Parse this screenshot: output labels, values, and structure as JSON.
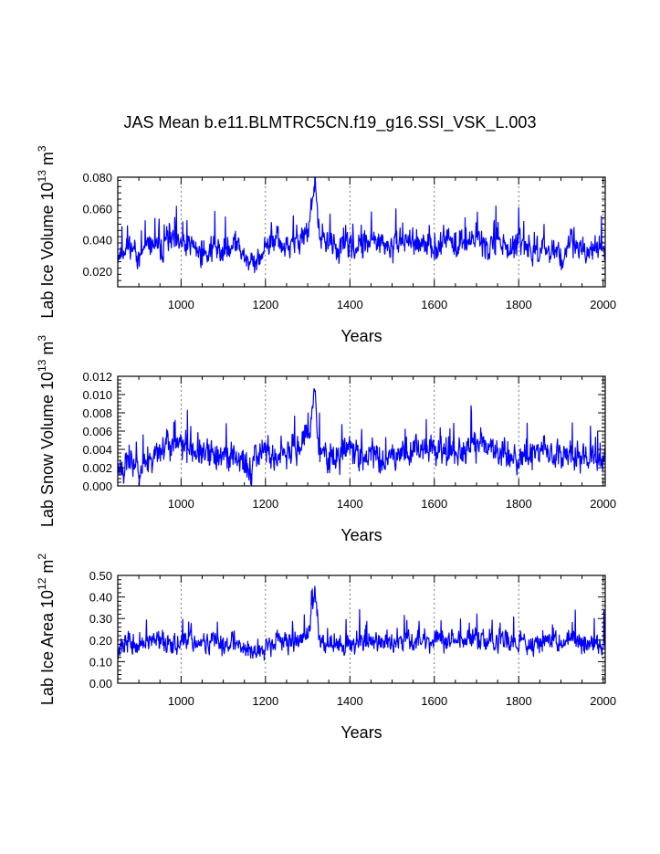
{
  "title": "JAS Mean b.e11.BLMTRC5CN.f19_g16.SSI_VSK_L.003",
  "colors": {
    "series": "#0000ff",
    "axis": "#000000",
    "grid": "#555555"
  },
  "chart_data": [
    {
      "type": "line",
      "title": "",
      "xlabel": "Years",
      "ylabel_parts": {
        "text": "Lab Ice Volume 10",
        "exp": "13",
        "unit": " m",
        "unit_exp": "3"
      },
      "xlim": [
        850,
        2005
      ],
      "ylim": [
        0.01,
        0.08
      ],
      "x_ticks": [
        1000,
        1200,
        1400,
        1600,
        1800,
        2000
      ],
      "y_ticks": [
        "0.020",
        "0.040",
        "0.060",
        "0.080"
      ],
      "grid": "vertical dashed at major x ticks",
      "series": [
        {
          "x": [
            850,
            875,
            900,
            925,
            950,
            975,
            1000,
            1025,
            1050,
            1075,
            1100,
            1125,
            1150,
            1175,
            1200,
            1225,
            1250,
            1275,
            1300,
            1318,
            1325,
            1350,
            1375,
            1400,
            1425,
            1450,
            1475,
            1500,
            1525,
            1550,
            1575,
            1600,
            1625,
            1650,
            1675,
            1700,
            1725,
            1750,
            1775,
            1800,
            1825,
            1850,
            1875,
            1900,
            1925,
            1950,
            1975,
            2000,
            2005
          ],
          "y": [
            0.03,
            0.036,
            0.028,
            0.038,
            0.034,
            0.04,
            0.035,
            0.038,
            0.03,
            0.036,
            0.032,
            0.038,
            0.03,
            0.022,
            0.036,
            0.04,
            0.034,
            0.04,
            0.042,
            0.078,
            0.044,
            0.038,
            0.034,
            0.036,
            0.034,
            0.04,
            0.036,
            0.034,
            0.04,
            0.038,
            0.036,
            0.034,
            0.04,
            0.036,
            0.038,
            0.042,
            0.036,
            0.04,
            0.034,
            0.036,
            0.032,
            0.034,
            0.036,
            0.03,
            0.036,
            0.034,
            0.032,
            0.036,
            0.034
          ],
          "noise": 0.012,
          "seed": 11
        }
      ]
    },
    {
      "type": "line",
      "title": "",
      "xlabel": "Years",
      "ylabel_parts": {
        "text": "Lab Snow Volume 10",
        "exp": "13",
        "unit": " m",
        "unit_exp": "3"
      },
      "xlim": [
        850,
        2005
      ],
      "ylim": [
        0.0,
        0.012
      ],
      "x_ticks": [
        1000,
        1200,
        1400,
        1600,
        1800,
        2000
      ],
      "y_ticks": [
        "0.000",
        "0.002",
        "0.004",
        "0.006",
        "0.008",
        "0.010",
        "0.012"
      ],
      "grid": "vertical dashed at major x ticks",
      "series": [
        {
          "x": [
            850,
            875,
            900,
            925,
            950,
            975,
            1000,
            1025,
            1050,
            1075,
            1100,
            1125,
            1150,
            1167,
            1175,
            1200,
            1225,
            1250,
            1275,
            1300,
            1318,
            1325,
            1350,
            1375,
            1400,
            1425,
            1450,
            1475,
            1500,
            1525,
            1550,
            1575,
            1600,
            1625,
            1650,
            1675,
            1700,
            1725,
            1750,
            1775,
            1800,
            1825,
            1850,
            1875,
            1900,
            1925,
            1950,
            1975,
            2000,
            2005
          ],
          "y": [
            0.002,
            0.0025,
            0.002,
            0.003,
            0.004,
            0.0045,
            0.0045,
            0.004,
            0.0035,
            0.003,
            0.0035,
            0.003,
            0.0025,
            0.0005,
            0.0035,
            0.004,
            0.003,
            0.0035,
            0.004,
            0.005,
            0.0114,
            0.004,
            0.003,
            0.0035,
            0.0045,
            0.003,
            0.0035,
            0.003,
            0.0035,
            0.0035,
            0.004,
            0.0045,
            0.004,
            0.0035,
            0.0035,
            0.004,
            0.0045,
            0.004,
            0.004,
            0.0035,
            0.003,
            0.0035,
            0.004,
            0.0035,
            0.003,
            0.0035,
            0.003,
            0.003,
            0.003,
            0.003
          ],
          "noise": 0.0024,
          "seed": 23
        }
      ]
    },
    {
      "type": "line",
      "title": "",
      "xlabel": "Years",
      "ylabel_parts": {
        "text": "Lab Ice Area 10",
        "exp": "12",
        "unit": " m",
        "unit_exp": "2"
      },
      "xlim": [
        850,
        2005
      ],
      "ylim": [
        0.0,
        0.5
      ],
      "x_ticks": [
        1000,
        1200,
        1400,
        1600,
        1800,
        2000
      ],
      "y_ticks": [
        "0.00",
        "0.10",
        "0.20",
        "0.30",
        "0.40",
        "0.50"
      ],
      "grid": "vertical dashed at major x ticks",
      "series": [
        {
          "x": [
            850,
            875,
            900,
            925,
            950,
            975,
            1000,
            1025,
            1050,
            1075,
            1100,
            1125,
            1150,
            1175,
            1200,
            1225,
            1250,
            1275,
            1300,
            1318,
            1325,
            1350,
            1375,
            1400,
            1425,
            1450,
            1475,
            1500,
            1525,
            1550,
            1575,
            1600,
            1625,
            1650,
            1675,
            1700,
            1725,
            1750,
            1775,
            1800,
            1825,
            1850,
            1875,
            1900,
            1925,
            1950,
            1975,
            2000,
            2005
          ],
          "y": [
            0.16,
            0.19,
            0.17,
            0.2,
            0.18,
            0.2,
            0.18,
            0.2,
            0.17,
            0.19,
            0.18,
            0.19,
            0.17,
            0.14,
            0.18,
            0.2,
            0.18,
            0.2,
            0.22,
            0.44,
            0.22,
            0.19,
            0.17,
            0.18,
            0.19,
            0.2,
            0.19,
            0.18,
            0.21,
            0.2,
            0.21,
            0.19,
            0.21,
            0.2,
            0.2,
            0.21,
            0.19,
            0.2,
            0.18,
            0.2,
            0.18,
            0.19,
            0.2,
            0.18,
            0.19,
            0.19,
            0.17,
            0.18,
            0.18
          ],
          "noise": 0.07,
          "seed": 37
        }
      ]
    }
  ]
}
